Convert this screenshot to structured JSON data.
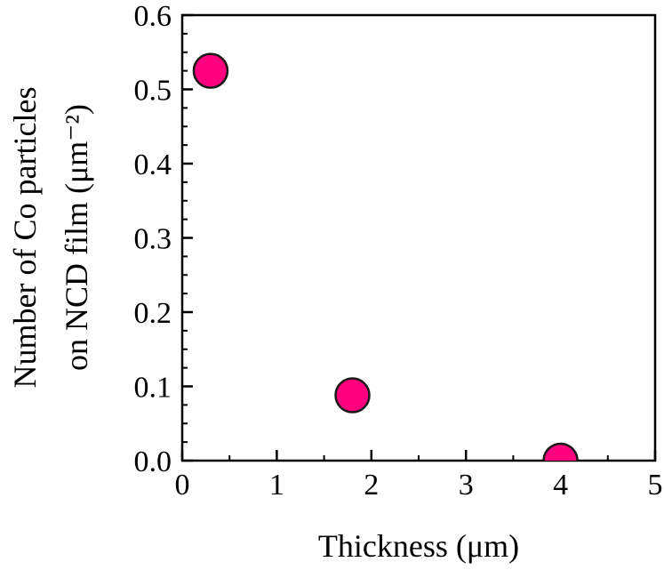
{
  "chart_data": {
    "type": "scatter",
    "xlabel": "Thickness (μm)",
    "ylabel_line1": "Number of Co particles",
    "ylabel_line2": "on NCD film (μm⁻²)",
    "xlim": [
      0,
      5
    ],
    "ylim": [
      0,
      0.6
    ],
    "x_ticks": [
      "0",
      "1",
      "2",
      "3",
      "4",
      "5"
    ],
    "y_ticks": [
      "0.0",
      "0.1",
      "0.2",
      "0.3",
      "0.4",
      "0.5",
      "0.6"
    ],
    "points": [
      {
        "x": 0.3,
        "y": 0.525
      },
      {
        "x": 1.8,
        "y": 0.088
      },
      {
        "x": 4.0,
        "y": 0.0
      }
    ],
    "marker_color": "#ff007f",
    "marker_edge_color": "#1a1a1a",
    "grid": false,
    "legend": false
  }
}
